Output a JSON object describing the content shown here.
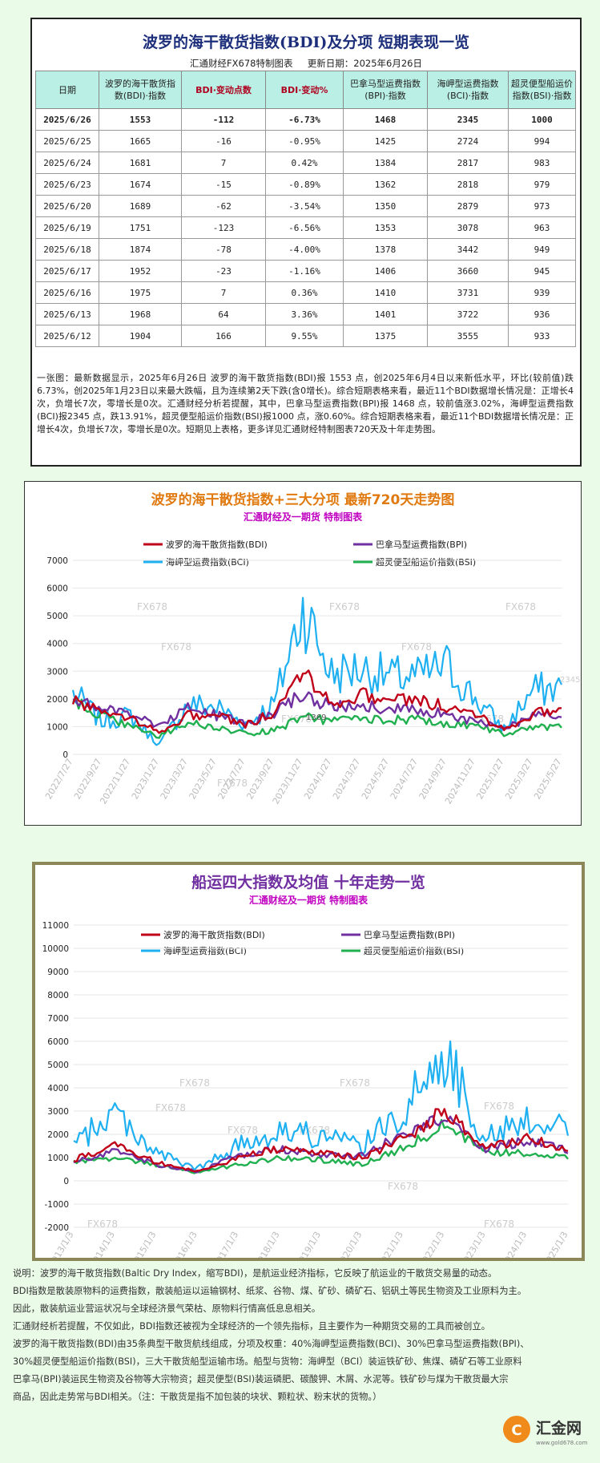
{
  "table": {
    "title": "波罗的海干散货指数(BDI)及分项 短期表现一览",
    "maker": "汇通财经FX678特制图表",
    "update": "更新日期：2025年6月26日",
    "headers": [
      "日期",
      "波罗的海干散货指数(BDI)·指数",
      "BDI·变动点数",
      "BDI·变动%",
      "巴拿马型运费指数(BPI)·指数",
      "海岬型运费指数(BCI)·指数",
      "超灵便型船运价指数(BSI)·指数"
    ],
    "rows": [
      [
        "2025/6/26",
        "1553",
        "-112",
        "-6.73%",
        "1468",
        "2345",
        "1000"
      ],
      [
        "2025/6/25",
        "1665",
        "-16",
        "-0.95%",
        "1425",
        "2724",
        "994"
      ],
      [
        "2025/6/24",
        "1681",
        "7",
        "0.42%",
        "1384",
        "2817",
        "983"
      ],
      [
        "2025/6/23",
        "1674",
        "-15",
        "-0.89%",
        "1362",
        "2818",
        "979"
      ],
      [
        "2025/6/20",
        "1689",
        "-62",
        "-3.54%",
        "1350",
        "2879",
        "973"
      ],
      [
        "2025/6/19",
        "1751",
        "-123",
        "-6.56%",
        "1353",
        "3078",
        "963"
      ],
      [
        "2025/6/18",
        "1874",
        "-78",
        "-4.00%",
        "1378",
        "3442",
        "949"
      ],
      [
        "2025/6/17",
        "1952",
        "-23",
        "-1.16%",
        "1406",
        "3660",
        "945"
      ],
      [
        "2025/6/16",
        "1975",
        "7",
        "0.36%",
        "1410",
        "3731",
        "939"
      ],
      [
        "2025/6/13",
        "1968",
        "64",
        "3.36%",
        "1401",
        "3722",
        "936"
      ],
      [
        "2025/6/12",
        "1904",
        "166",
        "9.55%",
        "1375",
        "3555",
        "933"
      ]
    ],
    "summary": "一张图：最新数据显示，2025年6月26日 波罗的海干散货指数(BDI)报 1553 点，创2025年6月4日以来新低水平，环比(较前值)跌6.73%，创2025年1月23日以来最大跌幅，且为连续第2天下跌(含0增长)。综合短期表格来看，最近11个BDI数据增长情况是：正增长4次，负增长7次，零增长是0次。汇通财经分析若提醒，其中，巴拿马型运费指数(BPI)报 1468 点，较前值涨3.02%，海岬型运费指数(BCI)报2345 点，跌13.91%，超灵便型船运价指数(BSI)报1000 点，涨0.60%。综合短期表格来看，最近11个BDI数据增长情况是：正增长4次，负增长7次，零增长是0次。短期见上表格，更多详见汇通财经特制图表720天及十年走势图。"
  },
  "colors": {
    "bdi": "#c00018",
    "bpi": "#7030a0",
    "bci": "#1eb0f0",
    "bsi": "#20b050",
    "title1": "#e07a10",
    "title2": "#7030a0",
    "sub": "#c000c0"
  },
  "chart_data": [
    {
      "type": "line",
      "title": "波罗的海干散货指数+三大分项  最新720天走势图",
      "subtitle": "汇通财经及一期货 特制图表",
      "watermark": "FX678",
      "x": [
        "2022/7/27",
        "2022/9/27",
        "2022/11/27",
        "2023/1/27",
        "2023/3/27",
        "2023/5/27",
        "2023/7/27",
        "2023/9/27",
        "2023/11/27",
        "2024/1/27",
        "2024/3/27",
        "2024/5/27",
        "2024/7/27",
        "2024/9/27",
        "2024/11/27",
        "2025/1/27",
        "2025/3/27",
        "2025/5/27"
      ],
      "ylim": [
        0,
        7000
      ],
      "yticks": [
        0,
        1000,
        2000,
        3000,
        4000,
        5000,
        6000,
        7000
      ],
      "annotation": {
        "x": "2023/11/27",
        "text": "1369"
      },
      "end_label": "2345",
      "legend": "top",
      "series": [
        {
          "name": "波罗的海干散货指数(BDI)",
          "key": "bdi",
          "values": [
            2000,
            1500,
            1350,
            800,
            1400,
            1400,
            1050,
            1500,
            3100,
            1800,
            2150,
            1950,
            1950,
            1700,
            1500,
            900,
            1450,
            1650
          ]
        },
        {
          "name": "巴拿马型运费指数(BPI)",
          "key": "bpi",
          "values": [
            2100,
            1600,
            1500,
            1000,
            1750,
            1400,
            1100,
            1450,
            2200,
            1700,
            1800,
            1650,
            1650,
            1400,
            1200,
            950,
            1350,
            1450
          ]
        },
        {
          "name": "海岬型运费指数(BCI)",
          "key": "bci",
          "values": [
            2200,
            1200,
            1400,
            350,
            1800,
            1700,
            1100,
            1800,
            5300,
            2900,
            3100,
            2800,
            2800,
            3200,
            2000,
            900,
            2300,
            2400
          ]
        },
        {
          "name": "超灵便型船运价指数(BSI)",
          "key": "bsi",
          "values": [
            1900,
            1400,
            1000,
            650,
            1150,
            950,
            750,
            850,
            1350,
            1200,
            1300,
            1250,
            1250,
            1100,
            1050,
            750,
            950,
            1000
          ]
        }
      ]
    },
    {
      "type": "line",
      "title": "船运四大指数及均值 十年走势一览",
      "subtitle": "汇通财经及一期货 特制图表",
      "watermark": "FX678",
      "x": [
        "2013/1/3",
        "2014/1/3",
        "2015/1/3",
        "2016/1/3",
        "2017/1/3",
        "2018/1/3",
        "2019/1/3",
        "2020/1/3",
        "2021/1/3",
        "2022/1/3",
        "2023/1/3",
        "2024/1/3",
        "2025/1/3"
      ],
      "ylim": [
        -2000,
        11000
      ],
      "yticks": [
        -2000,
        -1000,
        0,
        1000,
        2000,
        3000,
        4000,
        5000,
        6000,
        7000,
        8000,
        9000,
        10000,
        11000
      ],
      "legend": "top",
      "series": [
        {
          "name": "波罗的海干散货指数(BDI)",
          "key": "bdi",
          "values": [
            900,
            1500,
            800,
            400,
            1000,
            1400,
            1200,
            1000,
            1800,
            3000,
            1400,
            1800,
            1400
          ]
        },
        {
          "name": "巴拿马型运费指数(BPI)",
          "key": "bpi",
          "values": [
            800,
            1300,
            700,
            400,
            1100,
            1400,
            1100,
            1100,
            2000,
            2800,
            1400,
            1700,
            1300
          ]
        },
        {
          "name": "海岬型运费指数(BCI)",
          "key": "bci",
          "values": [
            1500,
            3000,
            1200,
            500,
            1500,
            2200,
            1900,
            1500,
            3000,
            5500,
            1800,
            2700,
            2300
          ]
        },
        {
          "name": "超灵便型船运价指数(BSI)",
          "key": "bsi",
          "values": [
            850,
            1000,
            700,
            350,
            700,
            1000,
            900,
            700,
            1400,
            2400,
            1200,
            1200,
            1000
          ]
        }
      ]
    }
  ],
  "description": [
    "说明：波罗的海干散货指数(Baltic Dry Index，缩写BDI)，是航运业经济指标，它反映了航运业的干散货交易量的动态。",
    "BDI指数是散装原物料的运费指数，散装船运以运输钢材、纸浆、谷物、煤、矿砂、磷矿石、铝矾土等民生物资及工业原料为主。",
    "因此，散装航运业营运状况与全球经济景气荣枯、原物料行情高低息息相关。",
    "汇通财经析若提醒，不仅如此，BDI指数还被视为全球经济的一个领先指标，且主要作为一种期货交易的工具而被创立。",
    "波罗的海干散货指数(BDI)由35条典型干散货航线组成，分项及权重：40%海岬型运费指数(BCI)、30%巴拿马型运费指数(BPI)、",
    "30%超灵便型船运价指数(BSI)，三大干散货船型运输市场。船型与货物：海岬型（BCI）装运铁矿砂、焦煤、磷矿石等工业原料",
    "巴拿马(BPI)装运民生物资及谷物等大宗物资；超灵便型(BSI)装运磷肥、碳酸钾、木屑、水泥等。铁矿砂与煤为干散货最大宗",
    "商品，因此走势常与BDI相关。（注：干散货是指不加包装的块状、颗粒状、粉末状的货物。）"
  ],
  "logo": {
    "text": "汇金网",
    "url_text": "www.gold678.com"
  }
}
